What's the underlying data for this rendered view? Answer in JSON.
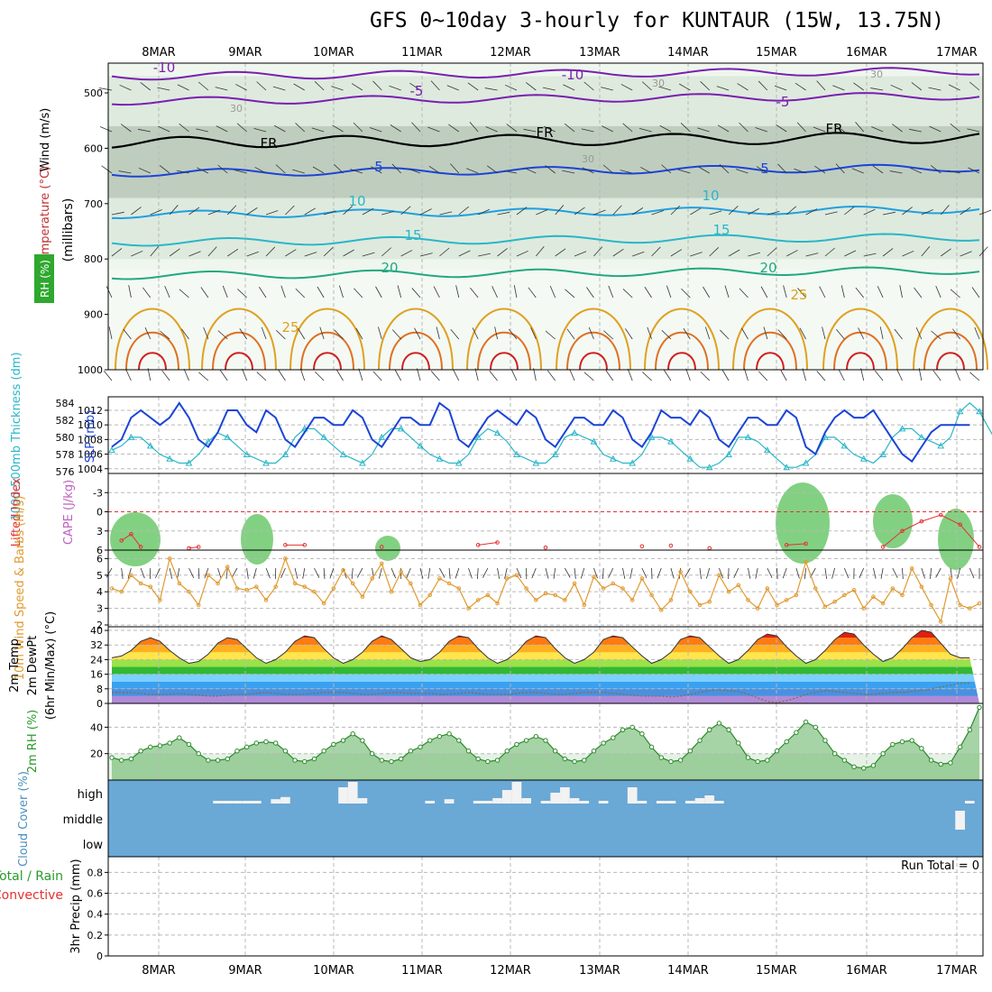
{
  "title": "GFS 0~10day 3-hourly for KUNTAUR (15W, 13.75N)",
  "dates": [
    "8MAR",
    "9MAR",
    "10MAR",
    "11MAR",
    "12MAR",
    "13MAR",
    "14MAR",
    "15MAR",
    "16MAR",
    "17MAR"
  ],
  "colors": {
    "axis": "#000000",
    "grid": "#b8b8b8",
    "purple": "#7a1fb0",
    "blue": "#1b44d6",
    "cyan": "#2ab6c8",
    "teal": "#22a880",
    "orange": "#e0a020",
    "green": "#4caf50",
    "cloud": "#6aa8d6",
    "red": "#e53030"
  },
  "upper": {
    "ylabel_wind": "Wind (m/s)",
    "ylabel_temp": "Temperature (°C)",
    "ylabel_rh": "RH (%)",
    "ylabel_pressure": "(millibars)",
    "pressure_ticks": [
      "500",
      "600",
      "700",
      "800",
      "900",
      "1000"
    ],
    "contour_labels": [
      {
        "text": "-10",
        "c": "purple"
      },
      {
        "text": "-10",
        "c": "purple"
      },
      {
        "text": "-5",
        "c": "purple"
      },
      {
        "text": "-5",
        "c": "purple"
      },
      {
        "text": "FR",
        "c": "black"
      },
      {
        "text": "FR",
        "c": "black"
      },
      {
        "text": "FR",
        "c": "black"
      },
      {
        "text": "5",
        "c": "blue"
      },
      {
        "text": "5",
        "c": "blue"
      },
      {
        "text": "10",
        "c": "cyan"
      },
      {
        "text": "10",
        "c": "cyan"
      },
      {
        "text": "15",
        "c": "cyan"
      },
      {
        "text": "15",
        "c": "cyan"
      },
      {
        "text": "20",
        "c": "teal"
      },
      {
        "text": "20",
        "c": "teal"
      },
      {
        "text": "25",
        "c": "orange"
      },
      {
        "text": "25",
        "c": "orange"
      },
      {
        "text": "30",
        "c": "grey"
      },
      {
        "text": "30",
        "c": "grey"
      },
      {
        "text": "30",
        "c": "grey"
      },
      {
        "text": "30",
        "c": "grey"
      }
    ]
  },
  "chart_data": [
    {
      "type": "line",
      "name": "thickness_slp",
      "ylabel_thickness": "1000-500mb Thickness (dm)",
      "ylabel_slp": "SLP (mb)",
      "thickness_ticks": [
        "576",
        "578",
        "580",
        "582",
        "584"
      ],
      "slp_ticks": [
        "1004",
        "1006",
        "1008",
        "1010",
        "1012"
      ],
      "thickness_ylim": [
        576,
        584.5
      ],
      "slp_ylim": [
        1003.6,
        1013.6
      ],
      "slp": [
        1007,
        1008,
        1011,
        1012,
        1011,
        1010,
        1011,
        1013,
        1011,
        1008,
        1007,
        1009,
        1012,
        1012,
        1010,
        1009,
        1012,
        1011,
        1008,
        1007,
        1009,
        1011,
        1011,
        1010,
        1010,
        1012,
        1011,
        1008,
        1007,
        1009,
        1011,
        1011,
        1010,
        1010,
        1013,
        1012,
        1008,
        1007,
        1009,
        1011,
        1012,
        1011,
        1010,
        1012,
        1011,
        1008,
        1007,
        1009,
        1011,
        1011,
        1010,
        1010,
        1012,
        1011,
        1008,
        1007,
        1009,
        1012,
        1011,
        1011,
        1010,
        1012,
        1011,
        1008,
        1007,
        1009,
        1011,
        1011,
        1010,
        1010,
        1012,
        1011,
        1007,
        1006,
        1009,
        1011,
        1012,
        1011,
        1011,
        1012,
        1010,
        1008,
        1006,
        1005,
        1007,
        1009,
        1010,
        1010,
        1010,
        1010
      ],
      "thickness": [
        578.5,
        579,
        580,
        580,
        579,
        578,
        577.5,
        577,
        577,
        578,
        579.5,
        580.5,
        580,
        579,
        578,
        577.5,
        577,
        577,
        578,
        580,
        581,
        581,
        580,
        579,
        578,
        577.5,
        577,
        578,
        580,
        581,
        581,
        580,
        579,
        578,
        577.5,
        577,
        577,
        578,
        580,
        581,
        580.5,
        579.5,
        578,
        577.5,
        577,
        577,
        578,
        580,
        580.5,
        580,
        579.5,
        578,
        577.5,
        577,
        577,
        578,
        580,
        580,
        579.5,
        578.5,
        577.5,
        576.5,
        576.5,
        577,
        578,
        580,
        580,
        579.5,
        578.5,
        577.5,
        576.5,
        576.5,
        577,
        578,
        580,
        580,
        579,
        578,
        577.5,
        577,
        578,
        580,
        581,
        581,
        580,
        579.5,
        579,
        580,
        583,
        584,
        583,
        581,
        579,
        578.5,
        579
      ]
    },
    {
      "type": "line",
      "name": "lifted_index_cape",
      "ylabel_li": "Lifted Index",
      "ylabel_cape": "CAPE (J/kg)",
      "ticks": [
        "-3",
        "0",
        "3",
        "6"
      ],
      "ylim": [
        -6,
        6
      ],
      "points_li": [
        [
          1,
          4.5
        ],
        [
          2,
          3.5
        ],
        [
          3,
          5.5
        ],
        [
          8,
          5.7
        ],
        [
          9,
          5.5
        ],
        [
          18,
          5.2
        ],
        [
          20,
          5.2
        ],
        [
          28,
          5.5
        ],
        [
          38,
          5.2
        ],
        [
          40,
          4.8
        ],
        [
          45,
          5.6
        ],
        [
          55,
          5.4
        ],
        [
          58,
          5.3
        ],
        [
          62,
          5.7
        ],
        [
          70,
          5.2
        ],
        [
          72,
          5.0
        ],
        [
          80,
          5.5
        ],
        [
          82,
          3
        ],
        [
          84,
          1.5
        ],
        [
          86,
          0.5
        ],
        [
          88,
          2
        ],
        [
          90,
          5.5
        ]
      ]
    },
    {
      "type": "line",
      "name": "wind10m",
      "ylabel": "10m Wind Speed & Barbs (m/s)",
      "ticks": [
        "2",
        "3",
        "4",
        "5",
        "6"
      ],
      "ylim": [
        2,
        6.4
      ],
      "values": [
        4.2,
        4,
        5,
        4.5,
        4.3,
        3.5,
        6,
        4.5,
        4,
        3.2,
        5,
        4.5,
        5.5,
        4.2,
        4.1,
        4.3,
        3.5,
        4.3,
        6,
        4.5,
        4.3,
        4,
        3.3,
        4.2,
        5.3,
        4.5,
        3.7,
        4.8,
        5.7,
        4,
        5.2,
        4.5,
        3.2,
        3.8,
        4.8,
        4.5,
        4.2,
        3,
        3.5,
        3.8,
        3.3,
        4.8,
        5,
        4.2,
        3.5,
        3.9,
        3.8,
        3.5,
        4.5,
        3.2,
        4.9,
        4.2,
        4.5,
        4.2,
        3.5,
        4.8,
        3.8,
        2.9,
        3.5,
        5.2,
        4,
        3.2,
        3.4,
        5,
        4,
        4.4,
        3.5,
        3,
        4.2,
        3.2,
        3.5,
        3.8,
        5.8,
        4.2,
        3.1,
        3.4,
        3.8,
        4.1,
        3,
        3.7,
        3.3,
        4.2,
        3.8,
        5.4,
        4.3,
        3.2,
        2.2,
        4.8,
        3.2,
        3,
        3.3
      ]
    },
    {
      "type": "area",
      "name": "temp2m",
      "ylabel_temp": "2m Temp",
      "ylabel_dewpt": "2m DewPt",
      "ylabel_minmax": "(6hr Min/Max) (°C)",
      "ticks": [
        "0",
        "8",
        "16",
        "24",
        "32",
        "40"
      ],
      "ylim": [
        0,
        42
      ],
      "temp": [
        25,
        26,
        29,
        34,
        36,
        34,
        29,
        25,
        22,
        23,
        27,
        33,
        36,
        35,
        30,
        25,
        22,
        24,
        28,
        34,
        37,
        36,
        30,
        25,
        22,
        24,
        28,
        34,
        37,
        35,
        30,
        25,
        23,
        24,
        28,
        34,
        37,
        36,
        30,
        25,
        22,
        24,
        28,
        34,
        37,
        36,
        30,
        25,
        22,
        24,
        28,
        35,
        37,
        36,
        31,
        26,
        22,
        24,
        28,
        35,
        37,
        36,
        31,
        26,
        22,
        24,
        29,
        35,
        38,
        37,
        31,
        26,
        22,
        24,
        29,
        35,
        39,
        38,
        32,
        27,
        23,
        25,
        30,
        36,
        40,
        39,
        33,
        27,
        25,
        25
      ],
      "dewpt": [
        6,
        6,
        6,
        5.5,
        5,
        5,
        5,
        5.5,
        5,
        4.5,
        4,
        4,
        4.5,
        5,
        5,
        5.5,
        6,
        5.5,
        5,
        5,
        5,
        5.5,
        6,
        6,
        6,
        5.5,
        5,
        5,
        5.5,
        6,
        6,
        5.5,
        5.5,
        5.5,
        5,
        5,
        5.5,
        6,
        5.5,
        5,
        5,
        5,
        5.5,
        6,
        6,
        5.5,
        5,
        5,
        5.5,
        6,
        6,
        6,
        5.5,
        5,
        4.5,
        4,
        4,
        4,
        3.5,
        4,
        5,
        6,
        7,
        7.5,
        7,
        6.5,
        5,
        3,
        1,
        0.5,
        1.5,
        3,
        5,
        6,
        7,
        6.5,
        6,
        5.5,
        5,
        5,
        5.5,
        6,
        6,
        6.5,
        7,
        8,
        9,
        10,
        11,
        11
      ]
    },
    {
      "type": "area",
      "name": "rh2m",
      "ylabel": "2m RH (%)",
      "ticks": [
        "20",
        "40"
      ],
      "ylim": [
        0,
        58
      ],
      "values": [
        17,
        15,
        16,
        22,
        25,
        26,
        28,
        32,
        27,
        20,
        15,
        15,
        16,
        22,
        25,
        28,
        29,
        28,
        22,
        15,
        14,
        16,
        22,
        27,
        30,
        35,
        30,
        20,
        15,
        14,
        16,
        22,
        25,
        30,
        33,
        35,
        30,
        22,
        16,
        14,
        15,
        22,
        27,
        30,
        33,
        30,
        22,
        16,
        14,
        15,
        22,
        28,
        32,
        38,
        40,
        35,
        25,
        17,
        14,
        15,
        22,
        30,
        38,
        43,
        38,
        28,
        17,
        14,
        15,
        22,
        29,
        36,
        44,
        40,
        30,
        20,
        15,
        10,
        9,
        11,
        20,
        27,
        29,
        30,
        24,
        15,
        12,
        13,
        25,
        38,
        55
      ]
    },
    {
      "type": "bar",
      "name": "cloud_cover",
      "ylabel": "Cloud Cover (%)",
      "levels": [
        "high",
        "middle",
        "low"
      ],
      "high": [
        0,
        0,
        0,
        0,
        0,
        0,
        0,
        0,
        0,
        0,
        0,
        5,
        5,
        5,
        5,
        5,
        0,
        8,
        12,
        0,
        0,
        0,
        0,
        0,
        30,
        40,
        10,
        0,
        0,
        0,
        0,
        0,
        0,
        5,
        0,
        8,
        0,
        0,
        5,
        5,
        10,
        25,
        40,
        10,
        0,
        5,
        20,
        30,
        10,
        5,
        0,
        5,
        0,
        0,
        30,
        5,
        0,
        5,
        5,
        0,
        5,
        10,
        15,
        5,
        0,
        0,
        0,
        0,
        0,
        0,
        0,
        0,
        0,
        0,
        0,
        0,
        0,
        0,
        0,
        0,
        0,
        0,
        0,
        0,
        0,
        0,
        0,
        0,
        0,
        5
      ],
      "middle": [
        0,
        0,
        0,
        0,
        0,
        0,
        0,
        0,
        0,
        0,
        0,
        0,
        0,
        0,
        0,
        0,
        0,
        0,
        0,
        0,
        0,
        0,
        0,
        0,
        0,
        0,
        0,
        0,
        0,
        0,
        0,
        0,
        0,
        0,
        0,
        0,
        0,
        0,
        0,
        0,
        0,
        0,
        0,
        0,
        0,
        0,
        0,
        0,
        0,
        0,
        0,
        0,
        0,
        0,
        0,
        0,
        0,
        0,
        0,
        0,
        0,
        0,
        0,
        0,
        0,
        0,
        0,
        0,
        0,
        0,
        0,
        0,
        0,
        0,
        0,
        0,
        0,
        0,
        0,
        0,
        0,
        0,
        0,
        0,
        0,
        0,
        0,
        0,
        35,
        0
      ]
    },
    {
      "type": "bar",
      "name": "precip3hr",
      "ylabel_precip": "3hr Precip (mm)",
      "ylabel_total": "Total / Rain",
      "ylabel_conv": "Convective",
      "run_total": "Run Total = 0",
      "ticks": [
        "0",
        "0.2",
        "0.4",
        "0.6",
        "0.8"
      ],
      "ylim": [
        0,
        0.95
      ]
    }
  ]
}
